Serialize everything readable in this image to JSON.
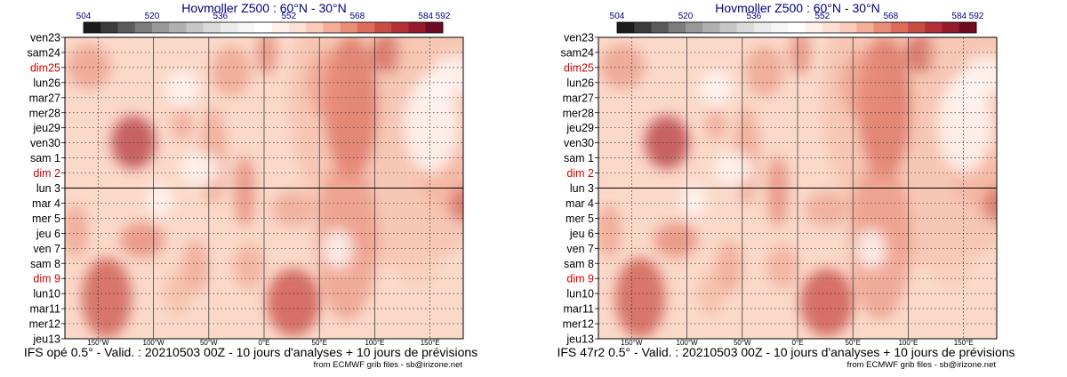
{
  "panels": [
    {
      "title": "Hovmoller Z500 : 60°N - 30°N",
      "caption": "IFS opé 0.5° - Valid. : 20210503 00Z - 10 jours d'analyses + 10 jours de prévisions",
      "credit": "from ECMWF grib files - sb@irizone.net"
    },
    {
      "title": "Hovmoller Z500 : 60°N - 30°N",
      "caption": "IFS 47r2 0.5° - Valid. : 20210503 00Z - 10 jours d'analyses + 10 jours de prévisions",
      "credit": "from ECMWF grib files - sb@irizone.net"
    }
  ],
  "chart_data": [
    {
      "type": "heatmap",
      "title": "Hovmoller Z500 : 60°N - 30°N",
      "colorbar": {
        "ticks": [
          "504",
          "520",
          "536",
          "552",
          "568",
          "584",
          "592"
        ],
        "colors": [
          "#1c1c1c",
          "#3c3c3c",
          "#5c5c5c",
          "#7c7c7c",
          "#989898",
          "#b0b0b0",
          "#c6c6c6",
          "#dadada",
          "#ebebeb",
          "#f6f6f6",
          "#ffffff",
          "#fff1ea",
          "#fde1d4",
          "#f9cbb8",
          "#f3ae98",
          "#e98d79",
          "#dc6c5c",
          "#c94d45",
          "#b22f36",
          "#96192c",
          "#6e0a22"
        ]
      },
      "y_dates": [
        "ven23",
        "sam24",
        "dim25",
        "lun26",
        "mar27",
        "mer28",
        "jeu29",
        "ven30",
        "sam 1",
        "dim 2",
        "lun 3",
        "mar 4",
        "mer 5",
        "jeu 6",
        "ven 7",
        "sam 8",
        "dim 9",
        "lun10",
        "mar11",
        "mer12",
        "jeu13"
      ],
      "sunday_rows": [
        2,
        9,
        16
      ],
      "x_ticks": [
        "150°W",
        "100°W",
        "50°W",
        "0°E",
        "50°E",
        "100°E",
        "150°E"
      ],
      "xlim": [
        -180,
        180
      ],
      "analysis_forecast_boundary": "lun 3"
    },
    {
      "type": "heatmap",
      "title": "Hovmoller Z500 : 60°N - 30°N",
      "colorbar": {
        "ticks": [
          "504",
          "520",
          "536",
          "552",
          "568",
          "584",
          "592"
        ],
        "colors": [
          "#1c1c1c",
          "#3c3c3c",
          "#5c5c5c",
          "#7c7c7c",
          "#989898",
          "#b0b0b0",
          "#c6c6c6",
          "#dadada",
          "#ebebeb",
          "#f6f6f6",
          "#ffffff",
          "#fff1ea",
          "#fde1d4",
          "#f9cbb8",
          "#f3ae98",
          "#e98d79",
          "#dc6c5c",
          "#c94d45",
          "#b22f36",
          "#96192c",
          "#6e0a22"
        ]
      },
      "y_dates": [
        "ven23",
        "sam24",
        "dim25",
        "lun26",
        "mar27",
        "mer28",
        "jeu29",
        "ven30",
        "sam 1",
        "dim 2",
        "lun 3",
        "mar 4",
        "mer 5",
        "jeu 6",
        "ven 7",
        "sam 8",
        "dim 9",
        "lun10",
        "mar11",
        "mer12",
        "jeu13"
      ],
      "sunday_rows": [
        2,
        9,
        16
      ],
      "x_ticks": [
        "150°W",
        "100°W",
        "50°W",
        "0°E",
        "50°E",
        "100°E",
        "150°E"
      ],
      "xlim": [
        -180,
        180
      ],
      "analysis_forecast_boundary": "lun 3"
    }
  ]
}
